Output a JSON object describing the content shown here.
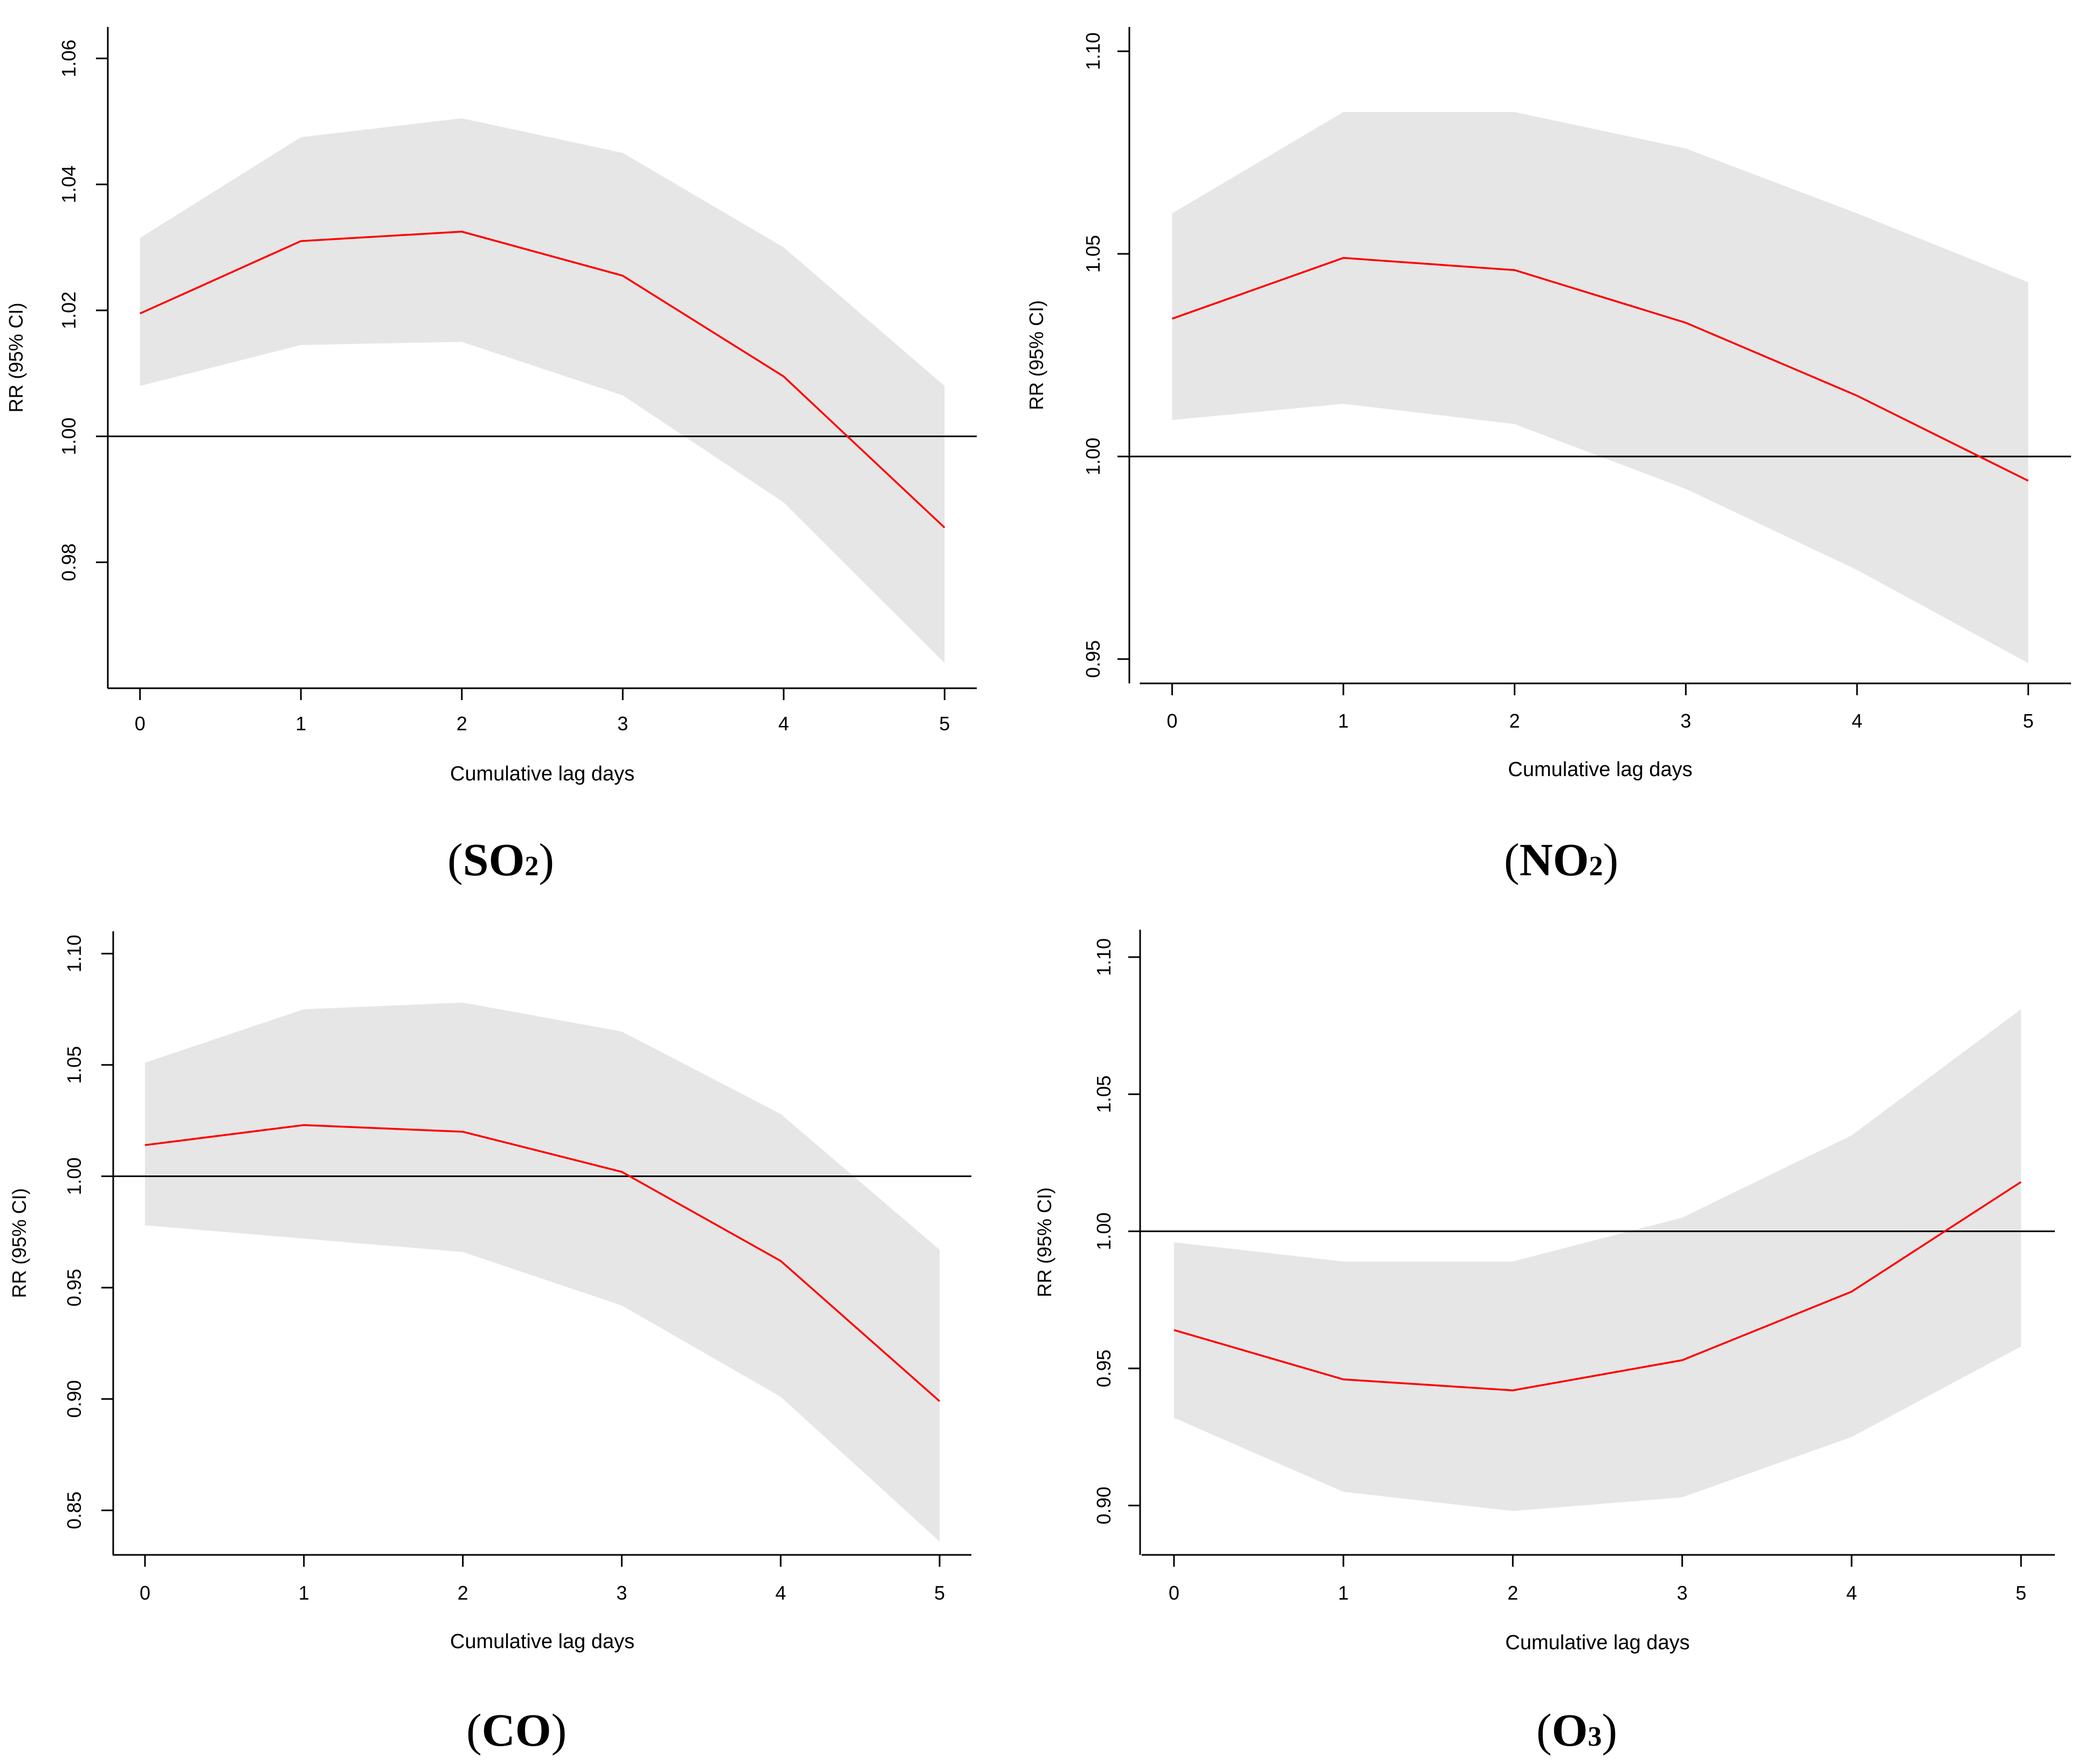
{
  "figure": {
    "panels": [
      {
        "id": "so2",
        "caption_open": "(",
        "caption_main": "SO",
        "caption_sub": "2",
        "caption_close": ")"
      },
      {
        "id": "no2",
        "caption_open": "(",
        "caption_main": "NO",
        "caption_sub": "2",
        "caption_close": ")"
      },
      {
        "id": "co",
        "caption_open": "(",
        "caption_main": "CO",
        "caption_sub": "",
        "caption_close": ")"
      },
      {
        "id": "o3",
        "caption_open": "(",
        "caption_main": "O",
        "caption_sub": "3",
        "caption_close": ")"
      }
    ]
  },
  "colors": {
    "line": "#ff0000",
    "band": "#e6e6e6",
    "axis": "#000000",
    "ref": "#000000"
  },
  "chart_data": [
    {
      "type": "line",
      "title": "(SO2)",
      "xlabel": "Cumulative lag days",
      "ylabel": "RR (95% CI)",
      "x": [
        0,
        1,
        2,
        3,
        4,
        5
      ],
      "xticks": [
        "0",
        "1",
        "2",
        "3",
        "4",
        "5"
      ],
      "yticks": [
        0.98,
        1.0,
        1.02,
        1.04,
        1.06
      ],
      "ytick_labels": [
        "0.98",
        "1.00",
        "1.02",
        "1.04",
        "1.06"
      ],
      "ylim": [
        0.96,
        1.065
      ],
      "xlim": [
        -0.2,
        5.2
      ],
      "reference_line": 1.0,
      "series": [
        {
          "name": "RR",
          "values": [
            1.0195,
            1.031,
            1.0325,
            1.0255,
            1.0095,
            0.9855
          ]
        },
        {
          "name": "Lower 95% CI",
          "values": [
            1.008,
            1.0145,
            1.015,
            1.0065,
            0.9895,
            0.964
          ]
        },
        {
          "name": "Upper 95% CI",
          "values": [
            1.0315,
            1.0475,
            1.0505,
            1.045,
            1.03,
            1.008
          ]
        }
      ]
    },
    {
      "type": "line",
      "title": "(NO2)",
      "xlabel": "Cumulative lag days",
      "ylabel": "RR (95% CI)",
      "x": [
        0,
        1,
        2,
        3,
        4,
        5
      ],
      "xticks": [
        "0",
        "1",
        "2",
        "3",
        "4",
        "5"
      ],
      "yticks": [
        0.95,
        1.0,
        1.05,
        1.1
      ],
      "ytick_labels": [
        "0.95",
        "1.00",
        "1.05",
        "1.10"
      ],
      "ylim": [
        0.944,
        1.106
      ],
      "xlim": [
        -0.25,
        5.25
      ],
      "reference_line": 1.0,
      "series": [
        {
          "name": "RR",
          "values": [
            1.034,
            1.049,
            1.046,
            1.033,
            1.015,
            0.994
          ]
        },
        {
          "name": "Lower 95% CI",
          "values": [
            1.009,
            1.013,
            1.008,
            0.992,
            0.972,
            0.949
          ]
        },
        {
          "name": "Upper 95% CI",
          "values": [
            1.06,
            1.085,
            1.085,
            1.076,
            1.06,
            1.043
          ]
        }
      ]
    },
    {
      "type": "line",
      "title": "(CO)",
      "xlabel": "Cumulative lag days",
      "ylabel": "RR (95% CI)",
      "x": [
        0,
        1,
        2,
        3,
        4,
        5
      ],
      "xticks": [
        "0",
        "1",
        "2",
        "3",
        "4",
        "5"
      ],
      "yticks": [
        0.85,
        0.9,
        0.95,
        1.0,
        1.05,
        1.1
      ],
      "ytick_labels": [
        "0.85",
        "0.90",
        "0.95",
        "1.00",
        "1.05",
        "1.10"
      ],
      "ylim": [
        0.83,
        1.11
      ],
      "xlim": [
        -0.2,
        5.2
      ],
      "reference_line": 1.0,
      "series": [
        {
          "name": "RR",
          "values": [
            1.014,
            1.023,
            1.02,
            1.002,
            0.962,
            0.899
          ]
        },
        {
          "name": "Lower 95% CI",
          "values": [
            0.978,
            0.972,
            0.966,
            0.942,
            0.901,
            0.836
          ]
        },
        {
          "name": "Upper 95% CI",
          "values": [
            1.051,
            1.075,
            1.078,
            1.065,
            1.028,
            0.967
          ]
        }
      ]
    },
    {
      "type": "line",
      "title": "(O3)",
      "xlabel": "Cumulative lag days",
      "ylabel": "RR (95% CI)",
      "x": [
        0,
        1,
        2,
        3,
        4,
        5
      ],
      "xticks": [
        "0",
        "1",
        "2",
        "3",
        "4",
        "5"
      ],
      "yticks": [
        0.9,
        0.95,
        1.0,
        1.05,
        1.1
      ],
      "ytick_labels": [
        "0.90",
        "0.95",
        "1.00",
        "1.05",
        "1.10"
      ],
      "ylim": [
        0.882,
        1.11
      ],
      "xlim": [
        -0.2,
        5.2
      ],
      "reference_line": 1.0,
      "series": [
        {
          "name": "RR",
          "values": [
            0.964,
            0.946,
            0.942,
            0.953,
            0.978,
            1.018
          ]
        },
        {
          "name": "Lower 95% CI",
          "values": [
            0.932,
            0.905,
            0.898,
            0.903,
            0.925,
            0.958
          ]
        },
        {
          "name": "Upper 95% CI",
          "values": [
            0.996,
            0.989,
            0.989,
            1.005,
            1.035,
            1.081
          ]
        }
      ]
    }
  ]
}
